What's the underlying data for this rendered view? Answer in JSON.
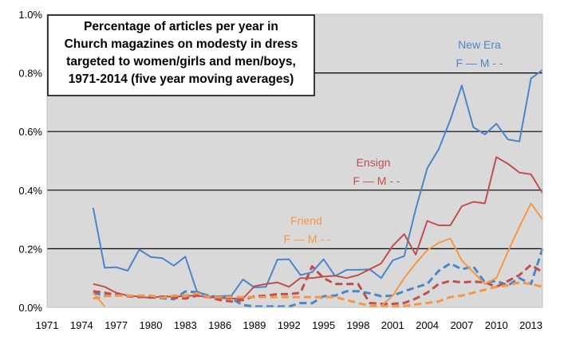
{
  "chart_data": {
    "type": "line",
    "title": [
      "Percentage of articles per year in",
      "Church magazines on modesty in dress",
      "targeted to women/girls and men/boys,",
      "1971-2014 (five year moving averages)"
    ],
    "xlim": [
      1971,
      2014
    ],
    "ylim": [
      0,
      1.0
    ],
    "x_ticks": [
      "1971",
      "1974",
      "1977",
      "1980",
      "1983",
      "1986",
      "1989",
      "1992",
      "1995",
      "1998",
      "2001",
      "2004",
      "2007",
      "2010",
      "2013"
    ],
    "y_ticks": [
      "0.0%",
      "0.2%",
      "0.4%",
      "0.6%",
      "0.8%",
      "1.0%"
    ],
    "grid": "horizontal",
    "groups": [
      {
        "name": "New Era",
        "legend": "F — M - -",
        "color": "#4a86c8"
      },
      {
        "name": "Ensign",
        "legend": "F — M - -",
        "color": "#c0504d"
      },
      {
        "name": "Friend",
        "legend": "F — M - -",
        "color": "#f79646"
      }
    ],
    "series": [
      {
        "group": "New Era",
        "line": "solid",
        "color": "#4a86c8",
        "x": [
          1975,
          1976,
          1977,
          1978,
          1979,
          1980,
          1981,
          1982,
          1983,
          1984,
          1985,
          1986,
          1987,
          1988,
          1989,
          1990,
          1991,
          1992,
          1993,
          1994,
          1995,
          1996,
          1997,
          1998,
          1999,
          2000,
          2001,
          2002,
          2003,
          2004,
          2005,
          2006,
          2007,
          2008,
          2009,
          2010,
          2011,
          2012,
          2013,
          2014
        ],
        "y": [
          0.34,
          0.135,
          0.137,
          0.125,
          0.197,
          0.172,
          0.168,
          0.142,
          0.173,
          0.055,
          0.037,
          0.038,
          0.04,
          0.095,
          0.068,
          0.07,
          0.163,
          0.164,
          0.11,
          0.12,
          0.164,
          0.107,
          0.128,
          0.128,
          0.13,
          0.1,
          0.16,
          0.175,
          0.335,
          0.475,
          0.54,
          0.64,
          0.757,
          0.615,
          0.59,
          0.627,
          0.573,
          0.566,
          0.781,
          0.81
        ]
      },
      {
        "group": "New Era",
        "line": "dashed",
        "color": "#4a86c8",
        "x": [
          1975,
          1976,
          1977,
          1978,
          1979,
          1980,
          1981,
          1982,
          1983,
          1984,
          1985,
          1986,
          1987,
          1988,
          1989,
          1990,
          1991,
          1992,
          1993,
          1994,
          1995,
          1996,
          1997,
          1998,
          1999,
          2000,
          2001,
          2002,
          2003,
          2004,
          2005,
          2006,
          2007,
          2008,
          2009,
          2010,
          2011,
          2012,
          2013,
          2014
        ],
        "y": [
          0.05,
          0.04,
          0.044,
          0.04,
          0.037,
          0.034,
          0.031,
          0.028,
          0.054,
          0.052,
          0.04,
          0.035,
          0.03,
          0.008,
          0.003,
          0.003,
          0.003,
          0.003,
          0.015,
          0.014,
          0.038,
          0.04,
          0.055,
          0.055,
          0.048,
          0.038,
          0.04,
          0.055,
          0.068,
          0.08,
          0.125,
          0.15,
          0.13,
          0.14,
          0.085,
          0.09,
          0.075,
          0.1,
          0.08,
          0.2
        ]
      },
      {
        "group": "Ensign",
        "line": "solid",
        "color": "#c0504d",
        "x": [
          1975,
          1976,
          1977,
          1978,
          1979,
          1980,
          1981,
          1982,
          1983,
          1984,
          1985,
          1986,
          1987,
          1988,
          1989,
          1990,
          1991,
          1992,
          1993,
          1994,
          1995,
          1996,
          1997,
          1998,
          1999,
          2000,
          2001,
          2002,
          2003,
          2004,
          2005,
          2006,
          2007,
          2008,
          2009,
          2010,
          2011,
          2012,
          2013,
          2014
        ],
        "y": [
          0.08,
          0.07,
          0.05,
          0.04,
          0.037,
          0.032,
          0.038,
          0.036,
          0.039,
          0.04,
          0.035,
          0.032,
          0.03,
          0.03,
          0.072,
          0.08,
          0.085,
          0.07,
          0.1,
          0.1,
          0.105,
          0.108,
          0.1,
          0.11,
          0.13,
          0.15,
          0.21,
          0.25,
          0.18,
          0.295,
          0.28,
          0.28,
          0.345,
          0.36,
          0.355,
          0.513,
          0.49,
          0.46,
          0.454,
          0.39
        ]
      },
      {
        "group": "Ensign",
        "line": "dashed",
        "color": "#c0504d",
        "x": [
          1975,
          1976,
          1977,
          1978,
          1979,
          1980,
          1981,
          1982,
          1983,
          1984,
          1985,
          1986,
          1987,
          1988,
          1989,
          1990,
          1991,
          1992,
          1993,
          1994,
          1995,
          1996,
          1997,
          1998,
          1999,
          2000,
          2001,
          2002,
          2003,
          2004,
          2005,
          2006,
          2007,
          2008,
          2009,
          2010,
          2011,
          2012,
          2013,
          2014
        ],
        "y": [
          0.055,
          0.05,
          0.042,
          0.038,
          0.035,
          0.038,
          0.036,
          0.033,
          0.03,
          0.04,
          0.035,
          0.025,
          0.02,
          0.025,
          0.038,
          0.04,
          0.045,
          0.045,
          0.05,
          0.14,
          0.1,
          0.08,
          0.08,
          0.08,
          0.015,
          0.012,
          0.012,
          0.015,
          0.03,
          0.05,
          0.08,
          0.09,
          0.085,
          0.088,
          0.085,
          0.07,
          0.09,
          0.11,
          0.145,
          0.12
        ]
      },
      {
        "group": "Friend",
        "line": "solid",
        "color": "#f79646",
        "x": [
          1975,
          1976,
          1977,
          1978,
          1979,
          1980,
          1981,
          1982,
          1983,
          1984,
          1985,
          1986,
          1987,
          1988,
          1989,
          1990,
          1991,
          1992,
          1993,
          1994,
          1995,
          1996,
          1997,
          1998,
          1999,
          2000,
          2001,
          2002,
          2003,
          2004,
          2005,
          2006,
          2007,
          2008,
          2009,
          2010,
          2011,
          2012,
          2013,
          2014
        ],
        "y": [
          0.05,
          0.003,
          null,
          null,
          null,
          null,
          null,
          null,
          null,
          null,
          null,
          null,
          null,
          null,
          null,
          null,
          null,
          null,
          null,
          null,
          null,
          null,
          null,
          null,
          null,
          0.005,
          0.04,
          0.1,
          0.15,
          0.195,
          0.22,
          0.235,
          0.16,
          0.12,
          0.08,
          0.1,
          0.19,
          0.275,
          0.355,
          0.3
        ]
      },
      {
        "group": "Friend",
        "line": "dashed",
        "color": "#f79646",
        "x": [
          1975,
          1976,
          1977,
          1978,
          1979,
          1980,
          1981,
          1982,
          1983,
          1984,
          1985,
          1986,
          1987,
          1988,
          1989,
          1990,
          1991,
          1992,
          1993,
          1994,
          1995,
          1996,
          1997,
          1998,
          1999,
          2000,
          2001,
          2002,
          2003,
          2004,
          2005,
          2006,
          2007,
          2008,
          2009,
          2010,
          2011,
          2012,
          2013,
          2014
        ],
        "y": [
          0.03,
          0.038,
          0.04,
          0.04,
          0.04,
          0.04,
          0.032,
          0.04,
          0.04,
          0.048,
          0.035,
          0.035,
          0.035,
          0.035,
          0.035,
          0.035,
          0.035,
          0.035,
          0.035,
          0.035,
          0.035,
          0.035,
          0.025,
          0.015,
          0.005,
          0.003,
          0.003,
          0.005,
          0.01,
          0.015,
          0.02,
          0.035,
          0.04,
          0.05,
          0.06,
          0.07,
          0.075,
          0.085,
          0.08,
          0.07
        ]
      }
    ]
  }
}
